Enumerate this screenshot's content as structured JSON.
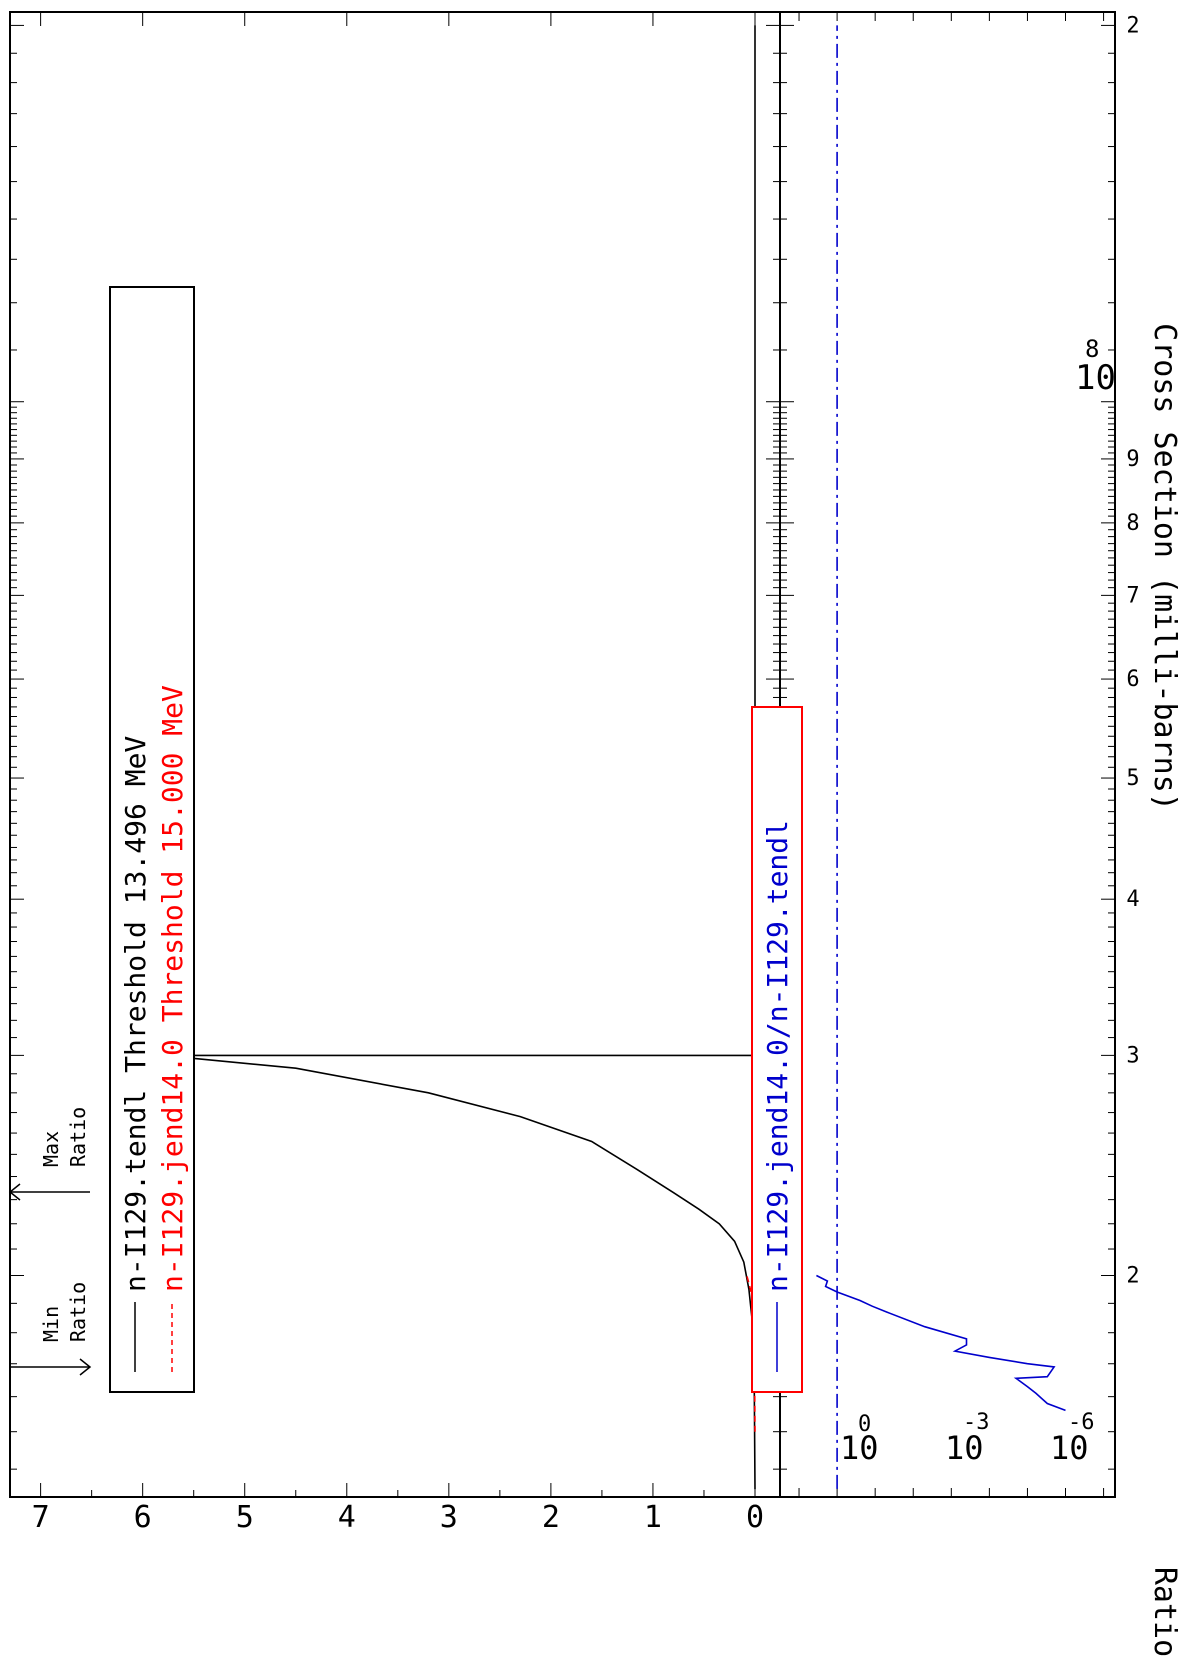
{
  "chart_data": [
    {
      "type": "line",
      "title": "",
      "xlabel": "",
      "ylabel": "Cross Section (milli-barns)",
      "x_scale": "log",
      "x_tick_labels": [
        "2",
        "3",
        "4",
        "5",
        "6",
        "7",
        "8",
        "9",
        "2"
      ],
      "x_exponent_label": {
        "base": "10",
        "exponent": "8"
      },
      "y_ticks": [
        "0",
        "1",
        "2",
        "3",
        "4",
        "5",
        "6",
        "7"
      ],
      "ylim": [
        0,
        7.3
      ],
      "annotations": [
        {
          "line1": "Min",
          "line2": "Ratio"
        },
        {
          "line1": "Max",
          "line2": "Ratio"
        }
      ],
      "legend_position": "top-left",
      "series": [
        {
          "name": "n-I129.tendl Threshold 13.496 MeV",
          "color": "#000000",
          "style": "solid",
          "points": [
            [
              13.496,
              0.0
            ],
            [
              17.5,
              0.01
            ],
            [
              18.5,
              0.03
            ],
            [
              19.5,
              0.06
            ],
            [
              20.5,
              0.11
            ],
            [
              21.3,
              0.2
            ],
            [
              22.0,
              0.35
            ],
            [
              22.6,
              0.55
            ],
            [
              23.3,
              0.8
            ],
            [
              24.3,
              1.15
            ],
            [
              25.6,
              1.6
            ],
            [
              26.8,
              2.3
            ],
            [
              28.0,
              3.2
            ],
            [
              29.3,
              4.5
            ],
            [
              30.0,
              5.8
            ],
            [
              30.0,
              0.0
            ],
            [
              200.0,
              0.0
            ]
          ]
        },
        {
          "name": "n-I129.jend14.0 Threshold 15.000 MeV",
          "color": "#ff0000",
          "style": "dashed",
          "points": [
            [
              15.0,
              0.0
            ],
            [
              17.0,
              0.005
            ],
            [
              18.5,
              0.01
            ],
            [
              19.3,
              0.03
            ],
            [
              20.0,
              0.08
            ]
          ]
        }
      ]
    },
    {
      "type": "line",
      "title": "",
      "xlabel": "",
      "ylabel": "Ratio",
      "x_scale": "log",
      "y_scale": "log",
      "y_tick_labels": [
        {
          "base": "10",
          "exponent": "0"
        },
        {
          "base": "10",
          "exponent": "-3"
        },
        {
          "base": "10",
          "exponent": "-6"
        }
      ],
      "legend_position": "top-left",
      "series": [
        {
          "name": "n-I129.jend14.0/n-I129.tendl",
          "color": "#0000cc",
          "style": "solid",
          "points": [
            [
              15.6,
              1e-06
            ],
            [
              15.8,
              3e-06
            ],
            [
              16.1,
              6e-06
            ],
            [
              16.3,
              1e-05
            ],
            [
              16.55,
              2e-05
            ],
            [
              16.6,
              3e-06
            ],
            [
              16.9,
              2e-06
            ],
            [
              17.0,
              1e-05
            ],
            [
              17.2,
              0.0001
            ],
            [
              17.4,
              0.0008
            ],
            [
              17.6,
              0.0004
            ],
            [
              17.8,
              0.0004
            ],
            [
              18.2,
              0.005
            ],
            [
              18.7,
              0.05
            ],
            [
              18.9,
              0.12
            ],
            [
              19.1,
              0.25
            ],
            [
              19.4,
              1.0
            ],
            [
              19.6,
              2.0
            ],
            [
              19.8,
              1.8
            ],
            [
              20.0,
              3.5
            ]
          ]
        },
        {
          "name": "",
          "color": "#0000cc",
          "style": "dashdot",
          "points": [
            [
              13.5,
              1.0
            ],
            [
              200.0,
              1.0
            ]
          ]
        }
      ]
    }
  ]
}
